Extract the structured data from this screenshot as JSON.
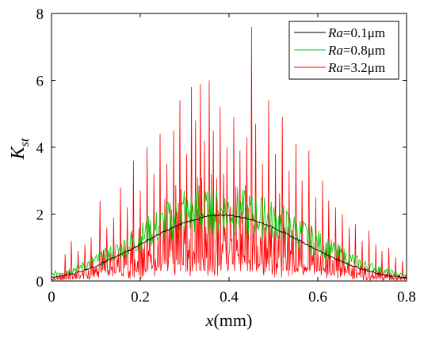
{
  "chart_data": {
    "type": "line",
    "xlabel": "x(mm)",
    "ylabel": "K",
    "ylabel_sub": "st",
    "xlim": [
      0,
      0.8
    ],
    "ylim": [
      0,
      8
    ],
    "x_ticks": [
      0,
      0.2,
      0.4,
      0.6,
      0.8
    ],
    "x_tick_labels": [
      "0",
      "0.2",
      "0.4",
      "0.6",
      "0.8"
    ],
    "y_ticks": [
      0,
      2,
      4,
      6,
      8
    ],
    "y_tick_labels": [
      "0",
      "2",
      "4",
      "6",
      "8"
    ],
    "grid": false,
    "legend_position": "top-right",
    "series": [
      {
        "name": "Ra=0.1μm",
        "legend_italic": "Ra",
        "legend_rest": "=0.1μm",
        "color": "#000000",
        "x": [
          0,
          0.05,
          0.1,
          0.15,
          0.2,
          0.25,
          0.3,
          0.35,
          0.38,
          0.4,
          0.45,
          0.5,
          0.55,
          0.6,
          0.65,
          0.7,
          0.75,
          0.8
        ],
        "y": [
          0.1,
          0.22,
          0.45,
          0.75,
          1.1,
          1.45,
          1.75,
          1.93,
          1.98,
          1.97,
          1.85,
          1.6,
          1.27,
          0.92,
          0.6,
          0.35,
          0.18,
          0.1
        ]
      },
      {
        "name": "Ra=0.8μm",
        "legend_italic": "Ra",
        "legend_rest": "=0.8μm",
        "color": "#00cc00",
        "x": [
          0,
          0.05,
          0.1,
          0.15,
          0.2,
          0.25,
          0.3,
          0.35,
          0.4,
          0.45,
          0.5,
          0.55,
          0.6,
          0.65,
          0.7,
          0.75,
          0.8
        ],
        "y": [
          0.2,
          0.35,
          0.6,
          0.9,
          1.3,
          1.7,
          2.0,
          2.05,
          2.1,
          2.0,
          1.8,
          1.5,
          1.15,
          0.8,
          0.5,
          0.3,
          0.15
        ],
        "peaks": [
          [
            0.3,
            2.7
          ],
          [
            0.33,
            3.1
          ],
          [
            0.36,
            2.9
          ],
          [
            0.42,
            2.8
          ],
          [
            0.48,
            2.5
          ],
          [
            0.26,
            2.3
          ]
        ]
      },
      {
        "name": "Ra=3.2μm",
        "legend_italic": "Ra",
        "legend_rest": "=3.2μm",
        "color": "#ff0000",
        "peaks": [
          [
            0.03,
            0.8
          ],
          [
            0.045,
            1.2
          ],
          [
            0.06,
            0.9
          ],
          [
            0.075,
            1.1
          ],
          [
            0.09,
            1.3
          ],
          [
            0.11,
            2.4
          ],
          [
            0.125,
            1.6
          ],
          [
            0.14,
            1.9
          ],
          [
            0.155,
            2.8
          ],
          [
            0.17,
            2.2
          ],
          [
            0.185,
            3.6
          ],
          [
            0.2,
            2.7
          ],
          [
            0.215,
            4.0
          ],
          [
            0.23,
            3.2
          ],
          [
            0.245,
            4.4
          ],
          [
            0.26,
            3.5
          ],
          [
            0.275,
            4.5
          ],
          [
            0.29,
            5.4
          ],
          [
            0.305,
            3.8
          ],
          [
            0.315,
            5.8
          ],
          [
            0.325,
            4.8
          ],
          [
            0.335,
            5.9
          ],
          [
            0.345,
            4.2
          ],
          [
            0.355,
            6.0
          ],
          [
            0.365,
            4.5
          ],
          [
            0.38,
            5.2
          ],
          [
            0.395,
            4.0
          ],
          [
            0.41,
            4.9
          ],
          [
            0.425,
            3.9
          ],
          [
            0.44,
            4.3
          ],
          [
            0.45,
            7.6
          ],
          [
            0.46,
            4.7
          ],
          [
            0.475,
            3.5
          ],
          [
            0.49,
            5.4
          ],
          [
            0.505,
            3.8
          ],
          [
            0.52,
            4.9
          ],
          [
            0.535,
            3.3
          ],
          [
            0.55,
            4.1
          ],
          [
            0.565,
            3.0
          ],
          [
            0.58,
            3.9
          ],
          [
            0.595,
            2.5
          ],
          [
            0.61,
            3.0
          ],
          [
            0.625,
            2.4
          ],
          [
            0.64,
            2.2
          ],
          [
            0.655,
            2.0
          ],
          [
            0.67,
            1.6
          ],
          [
            0.685,
            1.7
          ],
          [
            0.7,
            1.2
          ],
          [
            0.715,
            1.5
          ],
          [
            0.73,
            1.1
          ],
          [
            0.745,
            0.9
          ],
          [
            0.76,
            1.0
          ],
          [
            0.775,
            0.7
          ],
          [
            0.79,
            0.6
          ]
        ]
      }
    ]
  }
}
